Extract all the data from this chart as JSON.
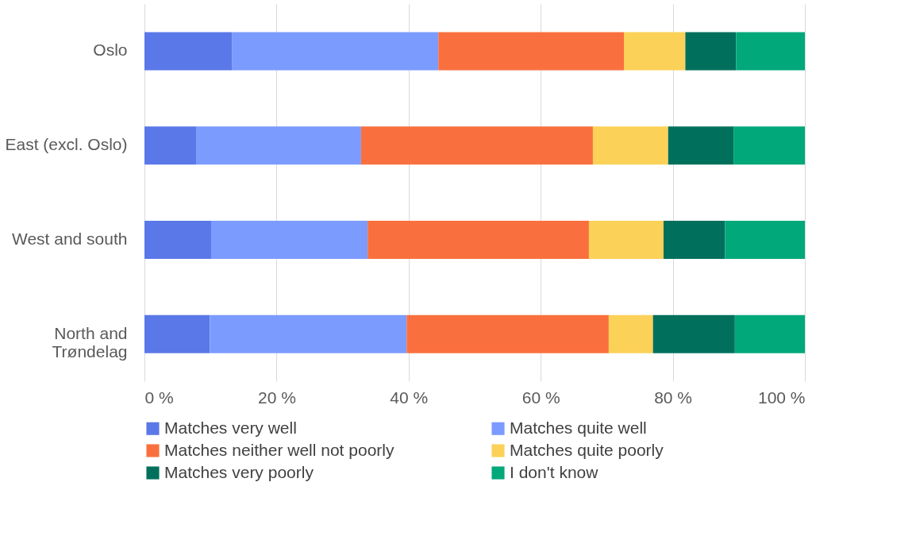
{
  "chart_data": {
    "type": "bar",
    "orientation": "horizontal",
    "stacked": true,
    "categories": [
      "Oslo",
      "East (excl. Oslo)",
      "West and south",
      "North and Trøndelag"
    ],
    "series": [
      {
        "name": "Matches very well",
        "color": "#5a78e8",
        "values": [
          13.3,
          7.9,
          10.1,
          9.9
        ]
      },
      {
        "name": "Matches quite well",
        "color": "#7b9bff",
        "values": [
          31.2,
          24.9,
          23.7,
          29.8
        ]
      },
      {
        "name": "Matches neither well not poorly",
        "color": "#f9703e",
        "values": [
          28.1,
          35.1,
          33.5,
          30.6
        ]
      },
      {
        "name": "Matches quite poorly",
        "color": "#fbd157",
        "values": [
          9.3,
          11.4,
          11.3,
          6.7
        ]
      },
      {
        "name": "Matches very poorly",
        "color": "#00705c",
        "values": [
          7.7,
          9.9,
          9.3,
          12.4
        ]
      },
      {
        "name": "I don't know",
        "color": "#00a87a",
        "values": [
          10.4,
          10.8,
          12.1,
          10.6
        ]
      }
    ],
    "xlim": [
      0,
      100
    ],
    "xticks": [
      {
        "value": 0,
        "label": "0 %"
      },
      {
        "value": 20,
        "label": "20 %"
      },
      {
        "value": 40,
        "label": "40 %"
      },
      {
        "value": 60,
        "label": "60 %"
      },
      {
        "value": 80,
        "label": "80 %"
      },
      {
        "value": 100,
        "label": "100 %"
      }
    ],
    "grid": "x",
    "legend": "bottom"
  }
}
